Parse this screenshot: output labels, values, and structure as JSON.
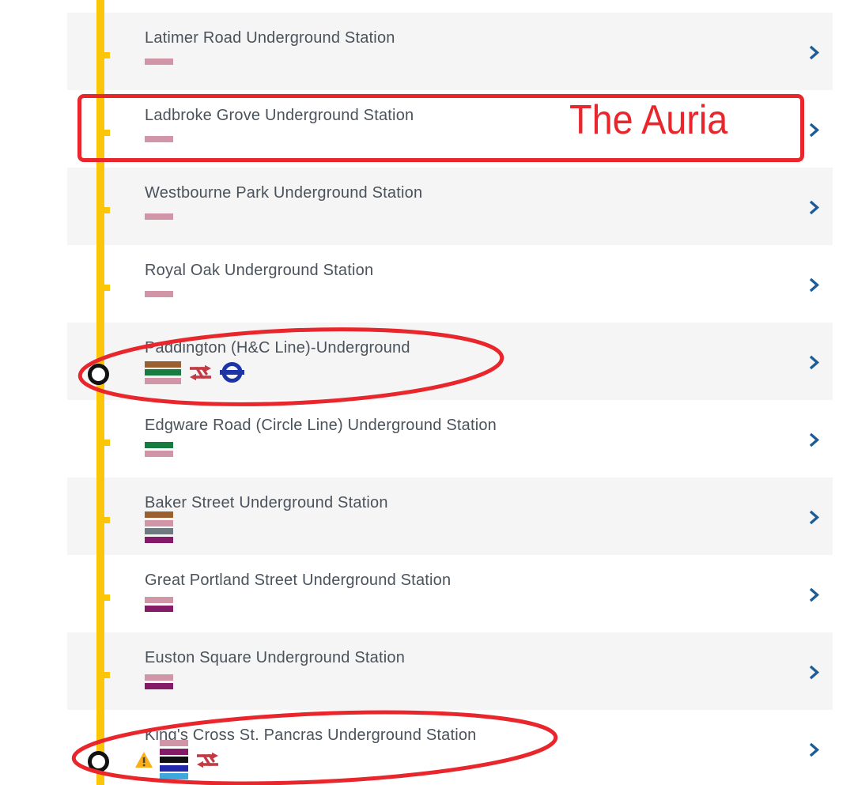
{
  "page": {
    "background": "#ffffff"
  },
  "rail": {
    "line_name": "circle-hammersmith-city-route-line",
    "color": "#FBC50A"
  },
  "colors": {
    "row_alt_bg": "#f5f5f6",
    "station_text": "#4A525B",
    "chevron_blue": "#1D5C97",
    "annotation_red": "#E8262B",
    "national_rail_red": "#C23A43",
    "roundel_blue": "#1C34A5",
    "warning_yellow": "#FBAE17",
    "interchange_ring": "#111111"
  },
  "line_colors": {
    "bakerloo": "#9A602F",
    "circle": "#FBC50A",
    "district": "#177C3F",
    "hammersmith-city": "#D096A8",
    "jubilee": "#6F7A80",
    "metropolitan": "#851A68",
    "northern": "#101013",
    "piccadilly": "#2429AC",
    "victoria": "#3EA8DD"
  },
  "stations": [
    {
      "name": "Latimer Road Underground Station",
      "lines": [
        "hammersmith-city"
      ],
      "marker": "tick",
      "icons": []
    },
    {
      "name": "Ladbroke Grove Underground Station",
      "lines": [
        "hammersmith-city"
      ],
      "marker": "tick",
      "icons": []
    },
    {
      "name": "Westbourne Park Underground Station",
      "lines": [
        "hammersmith-city"
      ],
      "marker": "tick",
      "icons": []
    },
    {
      "name": "Royal Oak Underground Station",
      "lines": [
        "hammersmith-city"
      ],
      "marker": "tick",
      "icons": []
    },
    {
      "name": "Paddington (H&C Line)-Underground",
      "lines": [
        "bakerloo",
        "district",
        "hammersmith-city"
      ],
      "marker": "interchange",
      "icons": [
        "national-rail-icon",
        "roundel-icon"
      ]
    },
    {
      "name": "Edgware Road (Circle Line) Underground Station",
      "lines": [
        "district",
        "hammersmith-city"
      ],
      "marker": "tick",
      "icons": []
    },
    {
      "name": "Baker Street Underground Station",
      "lines": [
        "bakerloo",
        "hammersmith-city",
        "jubilee",
        "metropolitan"
      ],
      "marker": "tick",
      "icons": []
    },
    {
      "name": "Great Portland Street Underground Station",
      "lines": [
        "hammersmith-city",
        "metropolitan"
      ],
      "marker": "tick",
      "icons": []
    },
    {
      "name": "Euston Square Underground Station",
      "lines": [
        "hammersmith-city",
        "metropolitan"
      ],
      "marker": "tick",
      "icons": []
    },
    {
      "name": "King's Cross St. Pancras Underground Station",
      "lines": [
        "hammersmith-city",
        "metropolitan",
        "northern",
        "piccadilly",
        "victoria"
      ],
      "marker": "interchange",
      "icons": [
        "warning-icon",
        "national-rail-icon"
      ]
    }
  ],
  "annotations": {
    "highlight_label": "The Auria"
  }
}
